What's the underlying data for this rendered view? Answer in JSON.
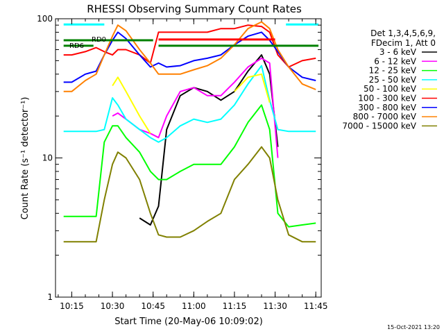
{
  "chart_data": {
    "type": "line",
    "title": "RHESSI Observing Summary Count Rates",
    "xlabel": "Start Time (20-May-06 10:09:02)",
    "ylabel": "Count Rate (s⁻¹ detector⁻¹)",
    "yscale": "log",
    "ylim": [
      1,
      100
    ],
    "xlim": [
      "10:09",
      "11:47"
    ],
    "x_ticks": [
      "10:15",
      "10:30",
      "10:45",
      "11:00",
      "11:15",
      "11:30",
      "11:45"
    ],
    "y_ticks": [
      "1",
      "10",
      "100"
    ],
    "footer": "15-Oct-2021 13:20",
    "legend": {
      "position": "right",
      "header": [
        "Det 1,3,4,5,6,9,",
        "FDecim 1, Att 0"
      ]
    },
    "annotations": [
      {
        "text": "RD0",
        "time": "10:31",
        "value": 70
      },
      {
        "text": "RD6",
        "time": "10:19",
        "value": 64
      }
    ],
    "time_ticks": [
      "10:15",
      "10:30",
      "10:45",
      "11:00",
      "11:15",
      "11:30",
      "11:45"
    ],
    "x": [
      "10:12",
      "10:15",
      "10:20",
      "10:24",
      "10:27",
      "10:30",
      "10:32",
      "10:35",
      "10:40",
      "10:44",
      "10:47",
      "10:50",
      "10:55",
      "11:00",
      "11:05",
      "11:10",
      "11:15",
      "11:20",
      "11:25",
      "11:28",
      "11:31",
      "11:35",
      "11:40",
      "11:45"
    ],
    "series": [
      {
        "name": "3 - 6 keV",
        "color": "#000000",
        "values": [
          null,
          null,
          null,
          null,
          null,
          null,
          null,
          null,
          3.7,
          3.3,
          4.5,
          16,
          28,
          32,
          30,
          26,
          30,
          42,
          55,
          40,
          12,
          null,
          null,
          null
        ]
      },
      {
        "name": "6 - 12 keV",
        "color": "#ff00ff",
        "values": [
          null,
          null,
          null,
          null,
          null,
          20,
          21,
          19,
          16,
          15,
          14,
          20,
          30,
          32,
          28,
          28,
          35,
          45,
          52,
          48,
          10,
          null,
          null,
          null
        ]
      },
      {
        "name": "12 - 25 keV",
        "color": "#00ff00",
        "values": [
          3.8,
          3.8,
          3.8,
          3.8,
          13,
          17,
          17,
          14,
          11,
          8,
          7,
          7,
          8,
          9,
          9,
          9,
          12,
          18,
          24,
          16,
          4,
          3.2,
          3.3,
          3.4
        ]
      },
      {
        "name": "25 - 50 keV",
        "color": "#00ffff",
        "values": [
          15.5,
          15.5,
          15.5,
          15.5,
          16,
          27,
          24,
          19,
          16,
          14,
          13,
          14,
          17,
          19,
          18,
          19,
          24,
          34,
          46,
          26,
          16,
          15.5,
          15.5,
          15.5
        ]
      },
      {
        "name": "50 - 100 keV",
        "color": "#ffff00",
        "values": [
          null,
          null,
          null,
          null,
          null,
          33,
          38,
          30,
          20,
          15,
          null,
          null,
          null,
          null,
          null,
          null,
          30,
          38,
          40,
          25,
          null,
          null,
          null,
          null
        ]
      },
      {
        "name": "100 - 300 keV",
        "color": "#ff0000",
        "values": [
          55,
          55,
          58,
          62,
          58,
          55,
          60,
          60,
          55,
          48,
          80,
          80,
          80,
          80,
          80,
          85,
          85,
          90,
          88,
          80,
          55,
          45,
          50,
          52
        ]
      },
      {
        "name": "300 - 800 keV",
        "color": "#0000ff",
        "values": [
          35,
          35,
          40,
          42,
          55,
          70,
          80,
          72,
          55,
          45,
          48,
          45,
          46,
          50,
          52,
          55,
          65,
          75,
          80,
          70,
          58,
          45,
          38,
          36
        ]
      },
      {
        "name": "800 - 7000 keV",
        "color": "#ff8000",
        "values": [
          30,
          30,
          36,
          40,
          55,
          75,
          90,
          82,
          60,
          48,
          40,
          40,
          40,
          43,
          46,
          52,
          65,
          85,
          95,
          85,
          60,
          45,
          34,
          31
        ]
      },
      {
        "name": "7000 - 15000 keV",
        "color": "#808000",
        "values": [
          2.5,
          2.5,
          2.5,
          2.5,
          5,
          9,
          11,
          10,
          7,
          4,
          2.8,
          2.7,
          2.7,
          3,
          3.5,
          4,
          7,
          9,
          12,
          10,
          5,
          2.8,
          2.5,
          2.5
        ]
      }
    ],
    "reference_lines": [
      {
        "color": "#00ffff",
        "value": 91,
        "from": "10:12",
        "to": "10:27"
      },
      {
        "color": "#00ffff",
        "value": 91,
        "from": "11:34",
        "to": "11:46"
      },
      {
        "color": "#008000",
        "value": 70,
        "from": "10:12",
        "to": "10:45"
      },
      {
        "color": "#008000",
        "value": 64,
        "from": "10:12",
        "to": "10:23"
      },
      {
        "color": "#008000",
        "value": 64,
        "from": "10:47",
        "to": "11:46"
      },
      {
        "color": "#ff0000",
        "value": 71,
        "from": "10:47",
        "to": "11:30"
      }
    ]
  }
}
